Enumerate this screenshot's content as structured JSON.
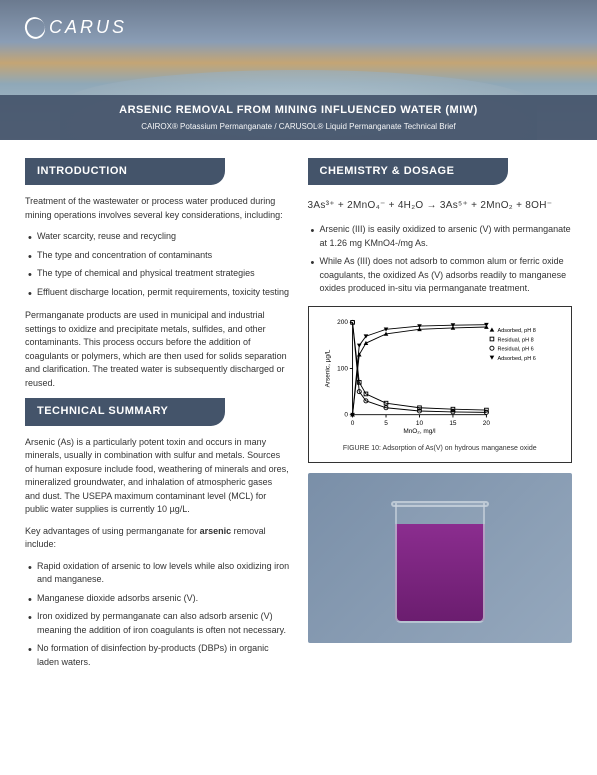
{
  "logo": {
    "text": "CARUS"
  },
  "hero": {
    "title": "ARSENIC REMOVAL FROM MINING INFLUENCED WATER (MIW)",
    "subtitle": "CAIROX® Potassium Permanganate / CARUSOL® Liquid Permanganate Technical Brief"
  },
  "left": {
    "intro": {
      "heading": "INTRODUCTION",
      "lead": "Treatment of the wastewater or process water produced during mining operations involves several key considerations, including:",
      "bullets": [
        "Water scarcity, reuse and recycling",
        "The type and concentration of contaminants",
        "The type of chemical and physical treatment strategies",
        "Effluent discharge location, permit requirements, toxicity testing"
      ],
      "trail": "Permanganate products are used in municipal and industrial settings to oxidize and precipitate metals, sulfides, and other contaminants. This process occurs before the addition of coagulants or polymers, which are then used for solids separation and clarification. The treated water is subsequently discharged or reused."
    },
    "tech": {
      "heading": "TECHNICAL SUMMARY",
      "p1": "Arsenic (As) is a particularly potent toxin and occurs in many minerals, usually in combination with sulfur and metals. Sources of human exposure include food, weathering of minerals and ores, mineralized groundwater, and inhalation of atmospheric gases and dust. The USEPA maximum contaminant level (MCL) for public water supplies is currently 10 µg/L.",
      "p2_pre": "Key advantages of using permanganate for ",
      "p2_bold": "arsenic",
      "p2_post": " removal include:",
      "bullets": [
        "Rapid oxidation of arsenic to low levels while also oxidizing iron and manganese.",
        "Manganese dioxide adsorbs arsenic (V).",
        "Iron oxidized by permanganate can also adsorb arsenic (V) meaning the addition of iron coagulants is often not necessary.",
        "No formation of disinfection by-products (DBPs) in organic laden waters."
      ]
    }
  },
  "right": {
    "chem": {
      "heading": "CHEMISTRY & DOSAGE",
      "formula": "3As³⁺ + 2MnO₄⁻ + 4H₂O → 3As⁵⁺ + 2MnO₂ + 8OH⁻",
      "bullets": [
        "Arsenic (III) is easily oxidized to arsenic (V) with permanganate at 1.26 mg KMnO4-/mg As.",
        "While As (III) does not adsorb to common alum or ferric oxide coagulants, the oxidized As (V) adsorbs readily to manganese oxides produced in-situ via permanganate treatment."
      ]
    },
    "chart": {
      "caption": "FIGURE 10: Adsorption of As(V) on hydrous manganese oxide",
      "xlabel": "MnO₂, mg/l",
      "ylabel": "Arsenic, µg/L",
      "xlim": [
        0,
        20
      ],
      "ylim": [
        0,
        200
      ],
      "xticks": [
        0,
        5,
        10,
        15,
        20
      ],
      "yticks": [
        0,
        100,
        200
      ],
      "series": [
        {
          "name": "Adsorbed, pH 8",
          "color": "#000",
          "marker": "triangle-up",
          "points": [
            [
              0,
              0
            ],
            [
              1,
              130
            ],
            [
              2,
              155
            ],
            [
              5,
              175
            ],
            [
              10,
              185
            ],
            [
              15,
              188
            ],
            [
              20,
              190
            ]
          ]
        },
        {
          "name": "Residual, pH 8",
          "color": "#000",
          "marker": "square",
          "points": [
            [
              0,
              200
            ],
            [
              1,
              70
            ],
            [
              2,
              45
            ],
            [
              5,
              25
            ],
            [
              10,
              15
            ],
            [
              15,
              12
            ],
            [
              20,
              10
            ]
          ]
        },
        {
          "name": "Residual, pH 6",
          "color": "#000",
          "marker": "circle",
          "points": [
            [
              0,
              200
            ],
            [
              1,
              50
            ],
            [
              2,
              30
            ],
            [
              5,
              15
            ],
            [
              10,
              8
            ],
            [
              15,
              6
            ],
            [
              20,
              5
            ]
          ]
        },
        {
          "name": "Adsorbed, pH 6",
          "color": "#000",
          "marker": "triangle-down",
          "points": [
            [
              0,
              0
            ],
            [
              1,
              150
            ],
            [
              2,
              170
            ],
            [
              5,
              185
            ],
            [
              10,
              192
            ],
            [
              15,
              194
            ],
            [
              20,
              195
            ]
          ]
        }
      ],
      "legend": [
        "Adsorbed, pH 8",
        "Residual, pH 8",
        "Residual, pH 6",
        "Adsorbed, pH 6"
      ],
      "line_color": "#000",
      "line_width": 1,
      "bg": "#fff",
      "axis_fontsize": 7
    },
    "beaker": {
      "liquid_color": "#7a2280",
      "bg": "#8a9db5"
    }
  }
}
